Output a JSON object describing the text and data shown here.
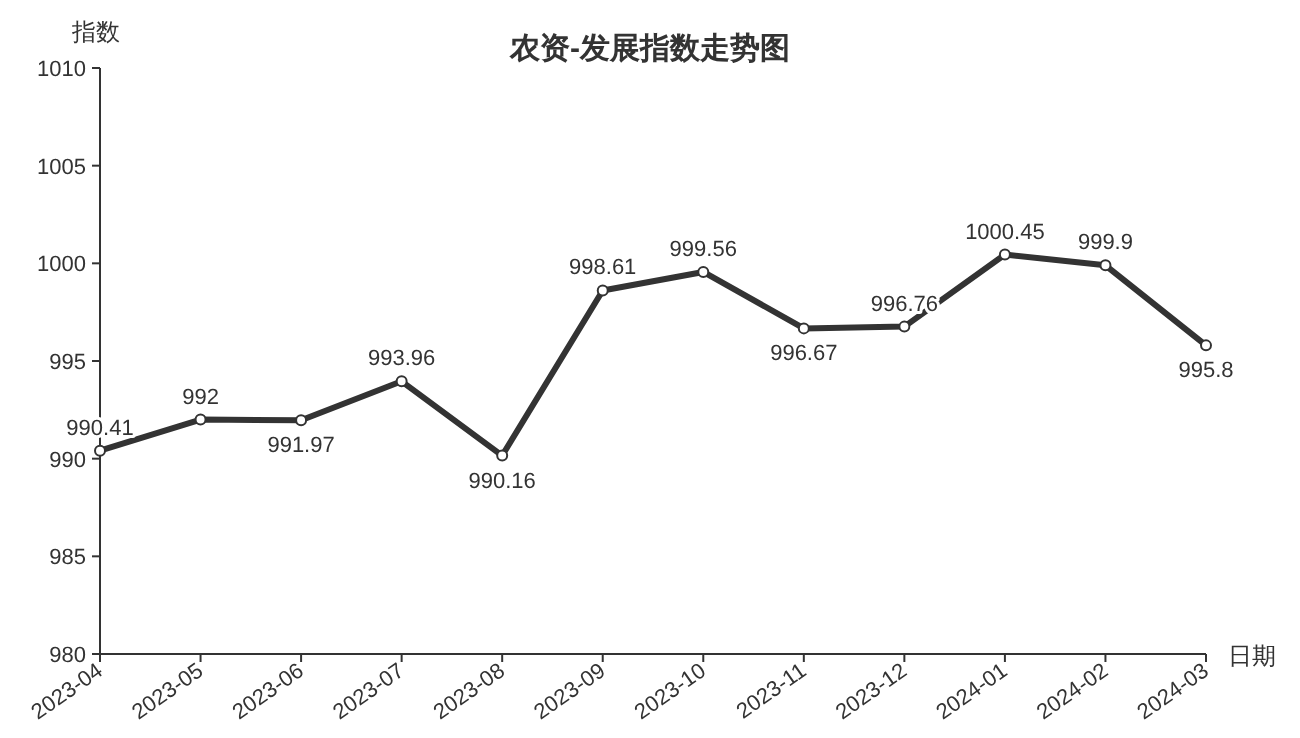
{
  "chart_data": {
    "type": "line",
    "title": "农资-发展指数走势图",
    "xlabel": "日期",
    "ylabel": "指数",
    "categories": [
      "2023-04",
      "2023-05",
      "2023-06",
      "2023-07",
      "2023-08",
      "2023-09",
      "2023-10",
      "2023-11",
      "2023-12",
      "2024-01",
      "2024-02",
      "2024-03"
    ],
    "series": [
      {
        "color": "#333333",
        "values": [
          990.41,
          992,
          991.97,
          993.96,
          990.16,
          998.61,
          999.56,
          996.67,
          996.76,
          1000.45,
          999.9,
          995.8
        ]
      }
    ],
    "ylim": [
      980,
      1010
    ],
    "yticks": [
      980,
      985,
      990,
      995,
      1000,
      1005,
      1010
    ],
    "data_labels": true,
    "marker": "circle",
    "line_style": "solid"
  }
}
